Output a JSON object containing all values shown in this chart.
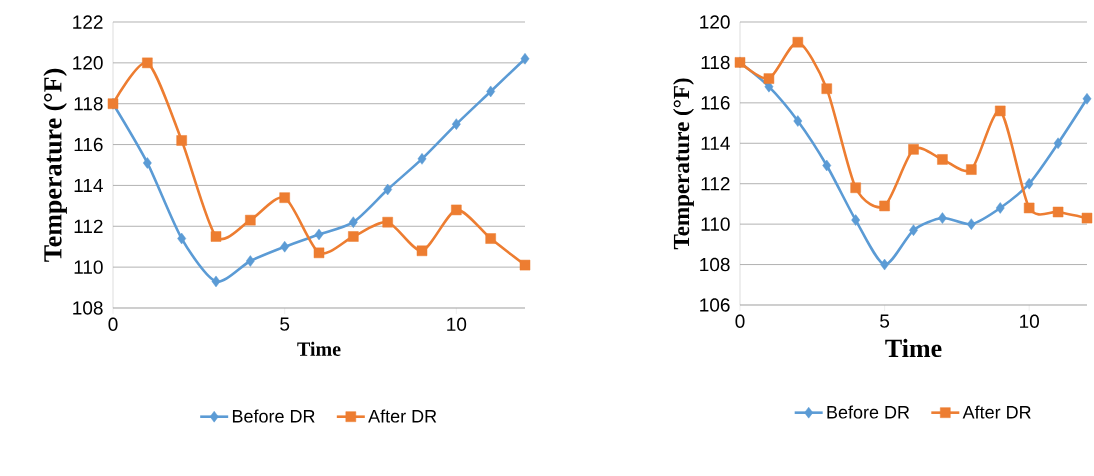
{
  "chart_data": [
    {
      "type": "line",
      "xlabel": "Time",
      "ylabel": "Temperature (°F)",
      "x": [
        0,
        1,
        2,
        3,
        4,
        5,
        6,
        7,
        8,
        9,
        10,
        11,
        12
      ],
      "xlim": [
        0,
        12
      ],
      "xticks": [
        0,
        5,
        10
      ],
      "ylim": [
        108,
        122
      ],
      "yticks": [
        108,
        110,
        112,
        114,
        116,
        118,
        120,
        122
      ],
      "grid": "y",
      "legend": "bottom",
      "series": [
        {
          "name": "Before DR",
          "color": "#5b9bd5",
          "marker": "diamond",
          "values": [
            118,
            115.1,
            111.4,
            109.3,
            110.3,
            111.0,
            111.6,
            112.2,
            113.8,
            115.3,
            117.0,
            118.6,
            120.2
          ]
        },
        {
          "name": "After DR",
          "color": "#ed7d31",
          "marker": "square",
          "values": [
            118,
            120,
            116.2,
            111.5,
            112.3,
            113.4,
            110.7,
            111.5,
            112.2,
            110.8,
            112.8,
            111.4,
            110.1
          ]
        }
      ]
    },
    {
      "type": "line",
      "xlabel": "Time",
      "ylabel": "Temperature (°F)",
      "x": [
        0,
        1,
        2,
        3,
        4,
        5,
        6,
        7,
        8,
        9,
        10,
        11,
        12
      ],
      "xlim": [
        0,
        12
      ],
      "xticks": [
        0,
        5,
        10
      ],
      "ylim": [
        106,
        120
      ],
      "yticks": [
        106,
        108,
        110,
        112,
        114,
        116,
        118,
        120
      ],
      "grid": "y",
      "legend": "bottom",
      "series": [
        {
          "name": "Before DR",
          "color": "#5b9bd5",
          "marker": "diamond",
          "values": [
            118,
            116.8,
            115.1,
            112.9,
            110.2,
            108.0,
            109.7,
            110.3,
            110.0,
            110.8,
            112.0,
            114.0,
            116.2
          ]
        },
        {
          "name": "After DR",
          "color": "#ed7d31",
          "marker": "square",
          "values": [
            118,
            117.2,
            119.0,
            116.7,
            111.8,
            110.9,
            113.7,
            113.2,
            112.7,
            115.6,
            110.8,
            110.6,
            110.3
          ]
        }
      ]
    }
  ]
}
